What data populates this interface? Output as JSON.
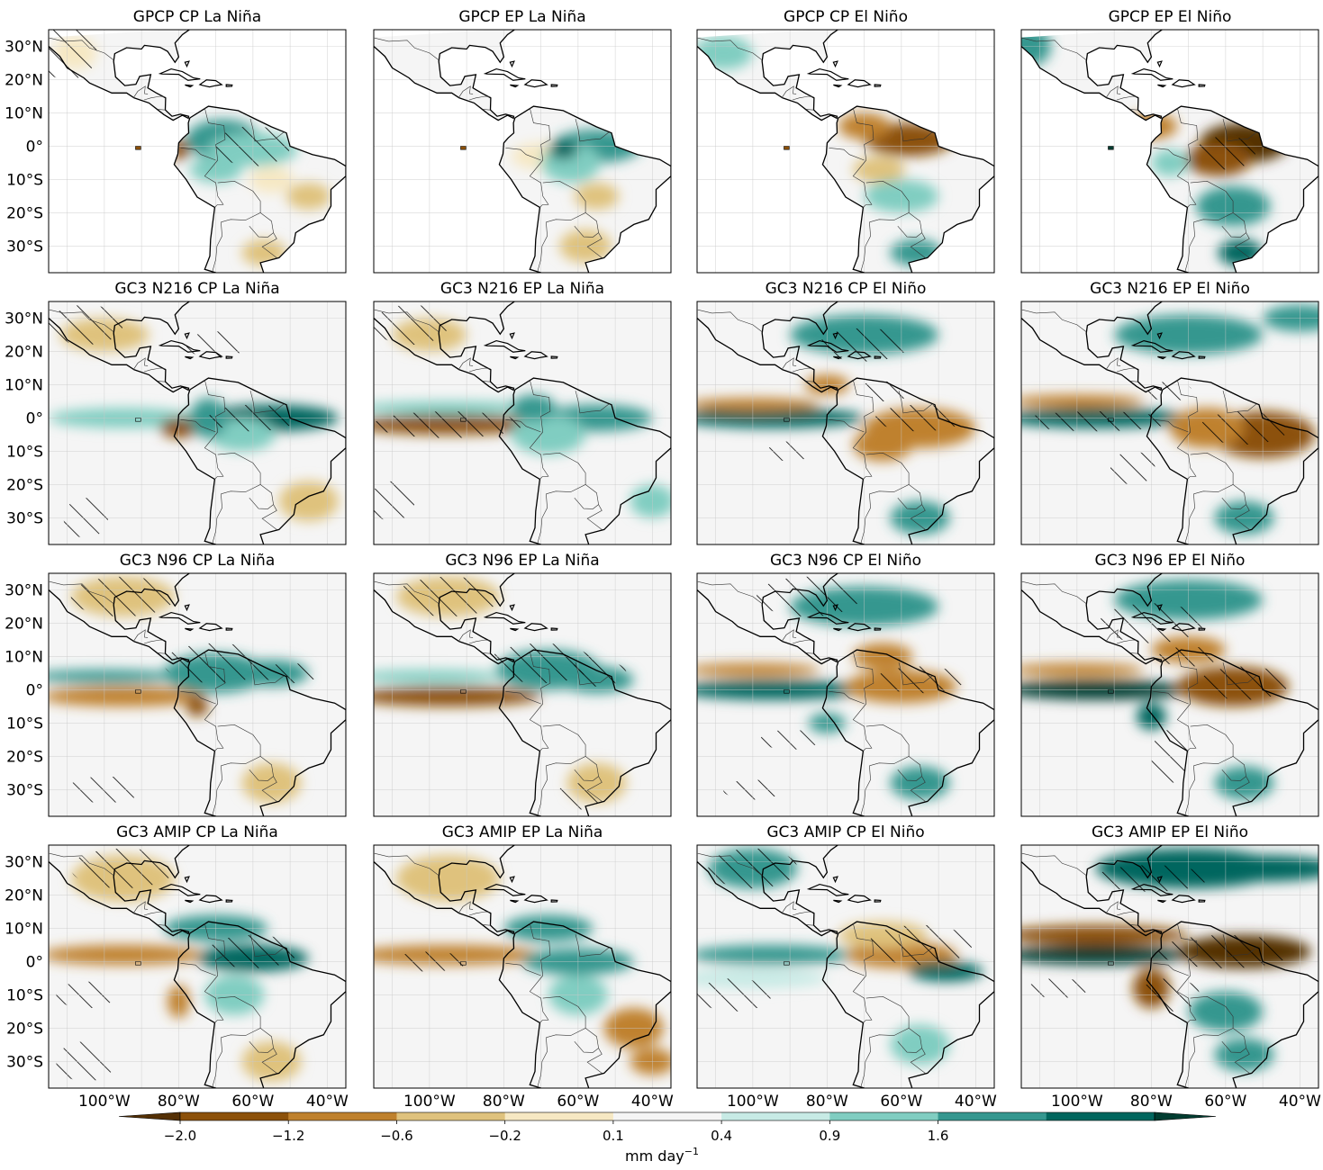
{
  "figure": {
    "panel_titles": [
      [
        "GPCP CP La Niña",
        "GPCP EP La Niña",
        "GPCP CP El Niño",
        "GPCP EP El Niño"
      ],
      [
        "GC3 N216 CP La Niña",
        "GC3 N216 EP La Niña",
        "GC3 N216 CP El Niño",
        "GC3 N216 EP El Niño"
      ],
      [
        "GC3 N96 CP La Niña",
        "GC3 N96 EP La Niña",
        "GC3 N96 CP El Niño",
        "GC3 N96 EP El Niño"
      ],
      [
        "GC3 AMIP CP La Niña",
        "GC3 AMIP EP La Niña",
        "GC3 AMIP CP El Niño",
        "GC3 AMIP EP El Niño"
      ]
    ],
    "lat_ticks": [
      "30°N",
      "20°N",
      "10°N",
      "0°",
      "10°S",
      "20°S",
      "30°S"
    ],
    "lon_ticks": [
      "100°W",
      "80°W",
      "60°W",
      "40°W"
    ],
    "colorbar": {
      "tick_labels": [
        "−2.0",
        "−1.2",
        "−0.6",
        "−0.2",
        "0.1",
        "0.4",
        "0.9",
        "1.6"
      ],
      "label": "mm day",
      "label_exponent": "−1",
      "colors": [
        "#543005",
        "#8c510a",
        "#bf812d",
        "#dfc27d",
        "#f6e8c3",
        "#f5f5f5",
        "#c7eae5",
        "#80cdc1",
        "#35978f",
        "#01665e",
        "#003c30"
      ]
    }
  },
  "chart_data": {
    "type": "heatmap",
    "variable": "precipitation anomaly",
    "units": "mm day^-1",
    "rows": [
      "GPCP",
      "GC3 N216",
      "GC3 N96",
      "GC3 AMIP"
    ],
    "columns": [
      "CP La Niña",
      "EP La Niña",
      "CP El Niño",
      "EP El Niño"
    ],
    "lat_range": [
      -38,
      35
    ],
    "lon_range": [
      -115,
      -35
    ],
    "lat_ticks": [
      30,
      20,
      10,
      0,
      -10,
      -20,
      -30
    ],
    "lon_ticks": [
      -100,
      -80,
      -60,
      -40
    ],
    "colorbar_levels": [
      -2.0,
      -1.2,
      -0.6,
      -0.2,
      0.1,
      0.4,
      0.9,
      1.6
    ],
    "colormap": "BrBG",
    "colorbar_extend": "both",
    "hatching": "significant anomalies"
  }
}
